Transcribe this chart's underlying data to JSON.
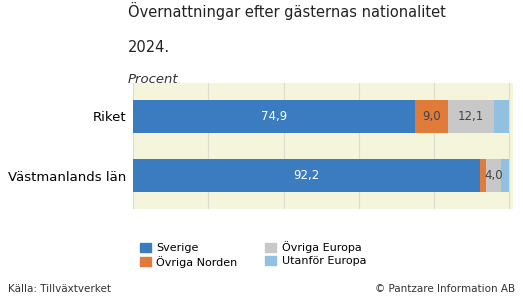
{
  "title_line1": "Övernattningar efter gästernas nationalitet",
  "title_line2": "2024.",
  "subtitle": "Procent",
  "categories": [
    "Riket",
    "Västmanlands län"
  ],
  "segments": [
    "Sverige",
    "Övriga Norden",
    "Övriga Europa",
    "Utanför Europa"
  ],
  "colors": [
    "#3B7BBF",
    "#E07B39",
    "#C8C8C8",
    "#92C0E0"
  ],
  "values": [
    [
      74.9,
      9.0,
      12.1,
      4.0
    ],
    [
      92.2,
      1.8,
      4.0,
      2.0
    ]
  ],
  "label_values": [
    [
      "74,9",
      "9,0",
      "12,1",
      ""
    ],
    [
      "92,2",
      "",
      "4,0",
      ""
    ]
  ],
  "source_left": "Källa: Tillväxtverket",
  "source_right": "© Pantzare Information AB",
  "chart_bg": "#F5F5DC",
  "fig_bg": "#FFFFFF",
  "grid_color": "#DDDDCC",
  "xlim": [
    0,
    101
  ],
  "bar_height": 0.55,
  "text_color_white": "#FFFFFF",
  "text_color_dark": "#444444",
  "tick_step": 20
}
